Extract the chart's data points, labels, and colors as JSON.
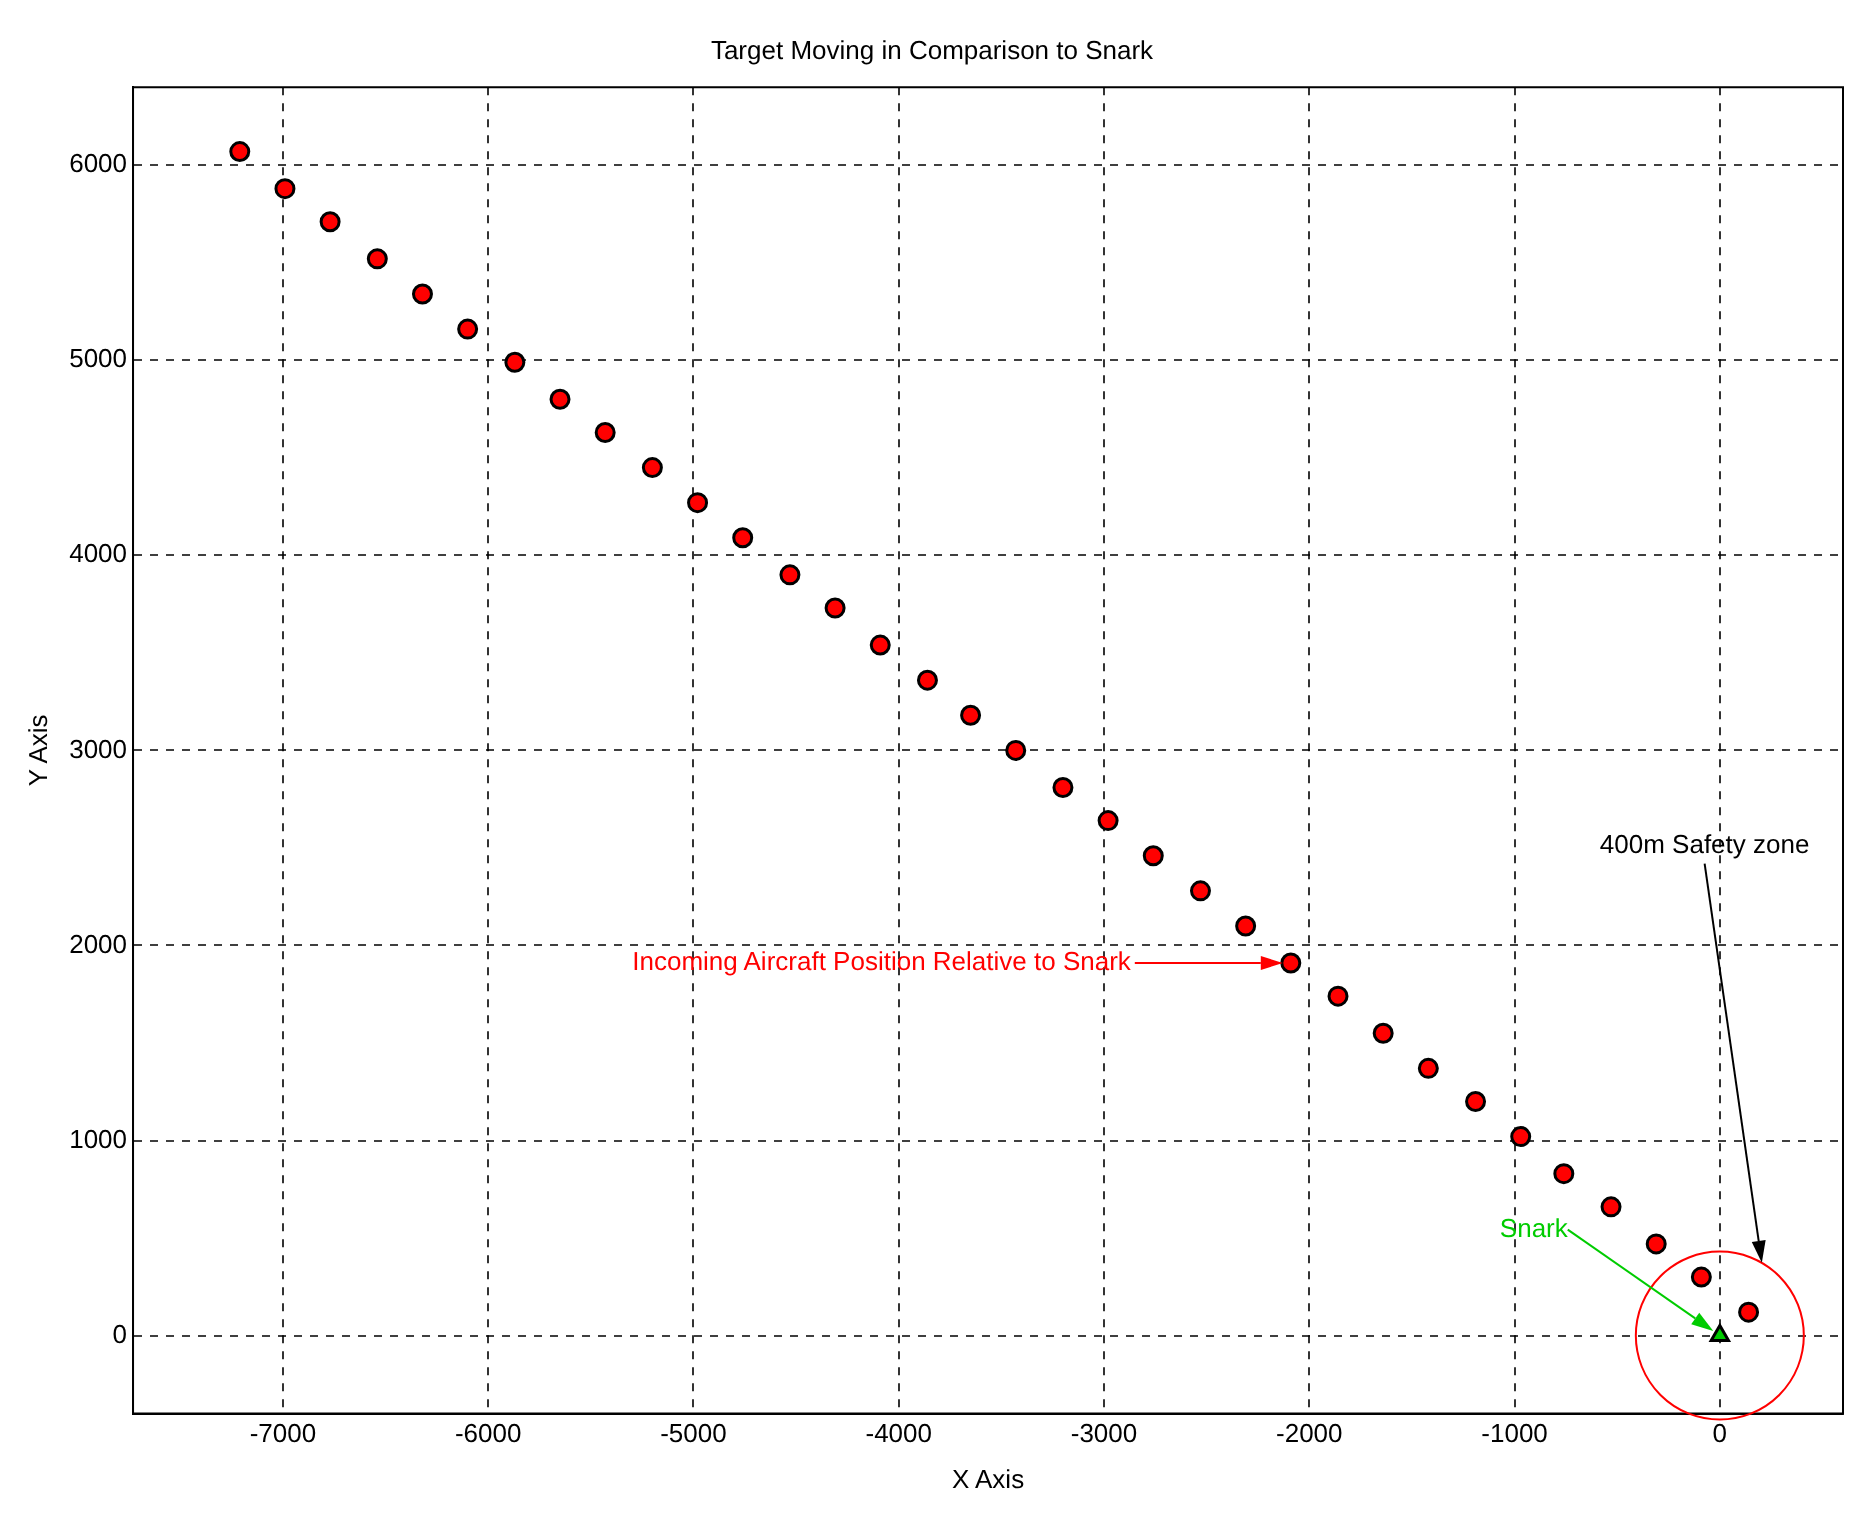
{
  "chart_data": {
    "type": "scatter",
    "title": "Target Moving in Comparison to Snark",
    "xlabel": "X Axis",
    "ylabel": "Y Axis",
    "xlim": [
      -7730,
      600
    ],
    "ylim": [
      -400,
      6400
    ],
    "xticks": [
      -7000,
      -6000,
      -5000,
      -4000,
      -3000,
      -2000,
      -1000,
      0
    ],
    "yticks": [
      0,
      1000,
      2000,
      3000,
      4000,
      5000,
      6000
    ],
    "grid": true,
    "legend": false,
    "series": [
      {
        "type": "scatter",
        "marker": "circle",
        "color": "#ff0000",
        "x": [
          -7210,
          -6990,
          -6770,
          -6540,
          -6320,
          -6100,
          -5870,
          -5650,
          -5430,
          -5200,
          -4980,
          -4760,
          -4530,
          -4310,
          -4090,
          -3860,
          -3650,
          -3430,
          -3200,
          -2980,
          -2760,
          -2530,
          -2310,
          -2090,
          -1860,
          -1640,
          -1420,
          -1190,
          -970,
          -760,
          -530,
          -310,
          -90,
          140
        ],
        "values": [
          6070,
          5880,
          5710,
          5520,
          5340,
          5160,
          4990,
          4800,
          4630,
          4450,
          4270,
          4090,
          3900,
          3730,
          3540,
          3360,
          3180,
          3000,
          2810,
          2640,
          2460,
          2280,
          2100,
          1910,
          1740,
          1550,
          1370,
          1200,
          1020,
          830,
          660,
          470,
          300,
          120
        ]
      },
      {
        "type": "scatter",
        "marker": "triangle",
        "color": "#00cc00",
        "x": [
          0
        ],
        "values": [
          0
        ]
      }
    ],
    "annotations": [
      "Incoming Aircraft Position Relative to Snark",
      "Snark",
      "400m Safety zone"
    ]
  }
}
